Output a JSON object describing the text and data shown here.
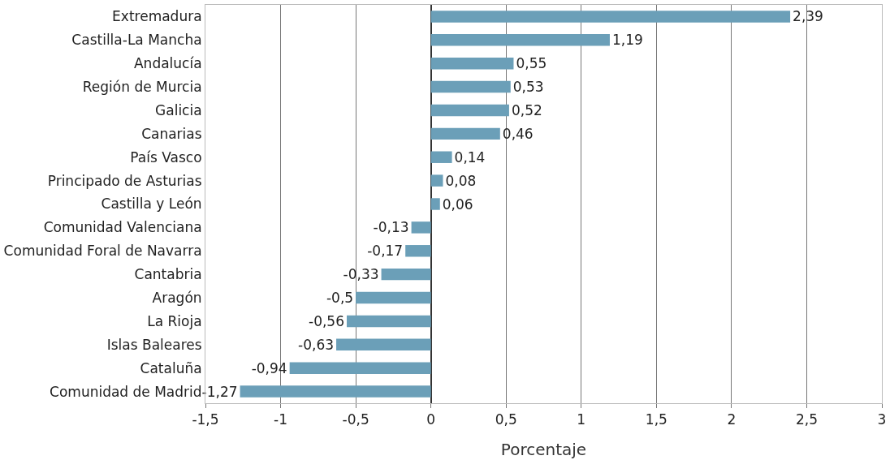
{
  "chart_data": {
    "type": "bar",
    "orientation": "horizontal",
    "xlabel": "Porcentaje",
    "categories": [
      "Extremadura",
      "Castilla-La Mancha",
      "Andalucía",
      "Región de Murcia",
      "Galicia",
      "Canarias",
      "País Vasco",
      "Principado de Asturias",
      "Castilla y León",
      "Comunidad Valenciana",
      "Comunidad Foral de Navarra",
      "Cantabria",
      "Aragón",
      "La Rioja",
      "Islas Baleares",
      "Cataluña",
      "Comunidad de Madrid"
    ],
    "values": [
      2.39,
      1.19,
      0.55,
      0.53,
      0.52,
      0.46,
      0.14,
      0.08,
      0.06,
      -0.13,
      -0.17,
      -0.33,
      -0.5,
      -0.56,
      -0.63,
      -0.94,
      -1.27
    ],
    "value_labels": [
      "2,39",
      "1,19",
      "0,55",
      "0,53",
      "0,52",
      "0,46",
      "0,14",
      "0,08",
      "0,06",
      "-0,13",
      "-0,17",
      "-0,33",
      "-0,5",
      "-0,56",
      "-0,63",
      "-0,94",
      "-1,27"
    ],
    "color": "#6b9fb8",
    "xlim": [
      -1.5,
      3
    ],
    "xticks": [
      {
        "value": -1.5,
        "label": "-1,5"
      },
      -1,
      {
        "value": -0.5,
        "label": "-0,5"
      },
      0,
      {
        "value": 0.5,
        "label": "0,5"
      },
      1,
      {
        "value": 1.5,
        "label": "1,5"
      },
      2,
      {
        "value": 2.5,
        "label": "2,5"
      },
      3
    ],
    "grid": "x"
  }
}
